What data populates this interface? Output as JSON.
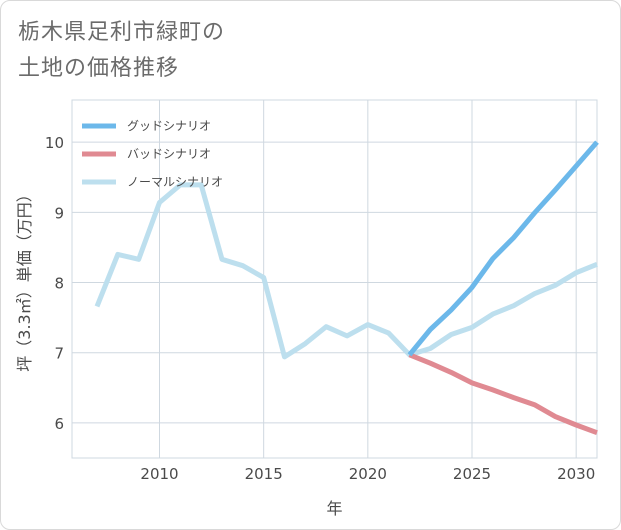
{
  "title_line1": "栃木県足利市緑町の",
  "title_line2": "土地の価格推移",
  "chart_data": {
    "type": "line",
    "xlabel": "年",
    "ylabel": "坪（3.3㎡）単価（万円）",
    "xlim": [
      2005.8,
      2031
    ],
    "ylim": [
      5.5,
      10.6
    ],
    "xticks": [
      2010,
      2015,
      2020,
      2025,
      2030
    ],
    "yticks": [
      6,
      7,
      8,
      9,
      10
    ],
    "grid": true,
    "legend_position": "top-left",
    "series": [
      {
        "name": "グッドシナリオ",
        "color": "#6cb8ea",
        "x": [
          2022,
          2023,
          2024,
          2025,
          2026,
          2027,
          2028,
          2029,
          2030,
          2031
        ],
        "y": [
          6.97,
          7.33,
          7.61,
          7.93,
          8.34,
          8.64,
          8.99,
          9.32,
          9.66,
          10.0
        ]
      },
      {
        "name": "バッドシナリオ",
        "color": "#e08a92",
        "x": [
          2022,
          2023,
          2024,
          2025,
          2026,
          2027,
          2028,
          2029,
          2030,
          2031
        ],
        "y": [
          6.97,
          6.85,
          6.72,
          6.57,
          6.47,
          6.36,
          6.26,
          6.09,
          5.97,
          5.86
        ]
      },
      {
        "name": "ノーマルシナリオ",
        "color": "#bddfee",
        "x": [
          2007,
          2008,
          2009,
          2010,
          2011,
          2012,
          2013,
          2014,
          2015,
          2016,
          2017,
          2018,
          2019,
          2020,
          2021,
          2022,
          2023,
          2024,
          2025,
          2026,
          2027,
          2028,
          2029,
          2030,
          2031
        ],
        "y": [
          7.66,
          8.4,
          8.33,
          9.14,
          9.39,
          9.39,
          8.33,
          8.24,
          8.07,
          6.94,
          7.13,
          7.37,
          7.24,
          7.4,
          7.28,
          6.97,
          7.06,
          7.26,
          7.36,
          7.55,
          7.67,
          7.84,
          7.96,
          8.14,
          8.26
        ]
      }
    ]
  }
}
